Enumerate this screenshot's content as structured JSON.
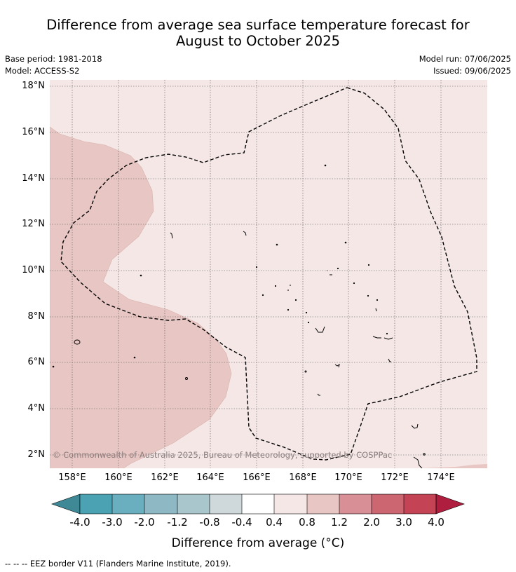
{
  "title": {
    "line1": "Difference from average sea surface temperature forecast for",
    "line2": "August to October 2025"
  },
  "meta": {
    "base_period": "Base period: 1981-2018",
    "model": "Model: ACCESS-S2",
    "model_run": "Model run: 07/06/2025",
    "issued": "Issued: 09/06/2025"
  },
  "map": {
    "lat_ticks": [
      "18°N",
      "16°N",
      "14°N",
      "12°N",
      "10°N",
      "8°N",
      "6°N",
      "4°N",
      "2°N"
    ],
    "lon_ticks": [
      "158°E",
      "160°E",
      "162°E",
      "164°E",
      "166°E",
      "168°E",
      "170°E",
      "172°E",
      "174°E"
    ],
    "copyright": "© Commonwealth of Australia 2025, Bureau of Meteorology, supported by COSPPac",
    "colors": {
      "background": "#f4e7e6",
      "warm_anomaly": "#e8c6c3",
      "coast_line": "#000000"
    }
  },
  "colorbar": {
    "labels": [
      "-4.0",
      "-3.0",
      "-2.0",
      "-1.2",
      "-0.8",
      "-0.4",
      "0.4",
      "0.8",
      "1.2",
      "2.0",
      "3.0",
      "4.0"
    ],
    "colors": [
      "#3f8896",
      "#4aa2b3",
      "#6aafbf",
      "#8db8c4",
      "#a8c6cb",
      "#cfd9db",
      "#ffffff",
      "#f4e7e6",
      "#e8c6c3",
      "#d88f96",
      "#cc6772",
      "#c44455",
      "#b01e3f"
    ],
    "title": "Difference from average (°C)"
  },
  "footnote": "--  --  -- EEZ border V11 (Flanders Marine Institute, 2019)."
}
